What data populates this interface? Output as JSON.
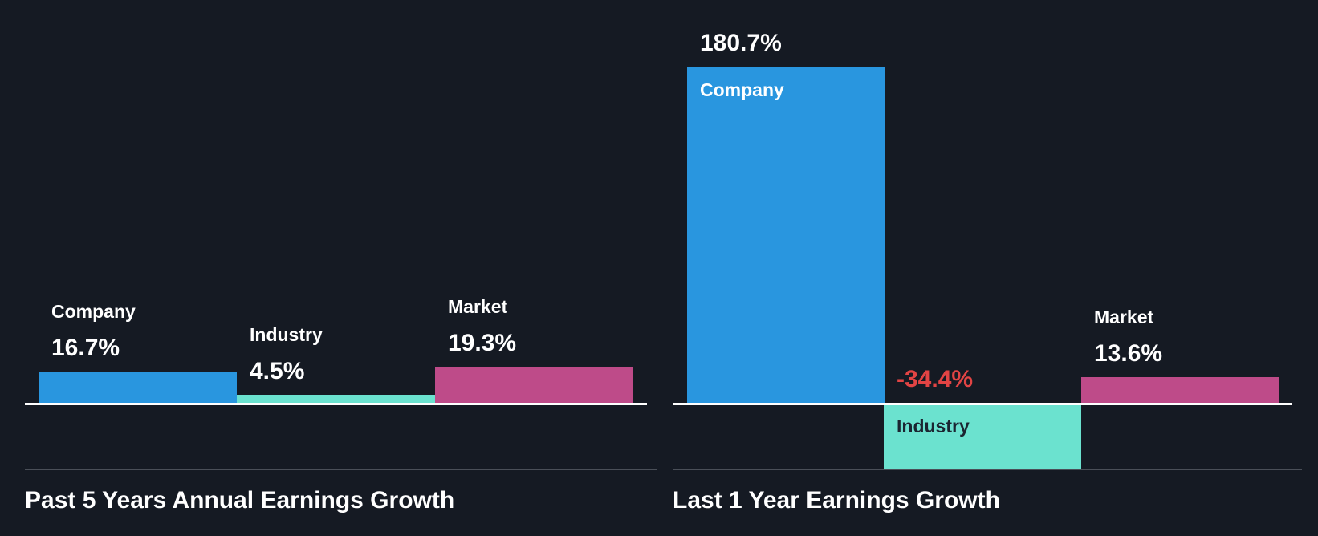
{
  "page": {
    "background_color": "#151A23",
    "baseline_color": "#FFFFFF",
    "separator_color": "#4A4F58",
    "title_color": "#FFFFFF",
    "negative_value_color": "#E24444"
  },
  "chart_data": [
    {
      "type": "bar",
      "title": "Past 5 Years Annual Earnings Growth",
      "unit": "%",
      "categories": [
        "Company",
        "Industry",
        "Market"
      ],
      "values": [
        16.7,
        4.5,
        19.3
      ],
      "ylim": [
        -40,
        195
      ],
      "grid": false,
      "legend": "none",
      "baseline": 0,
      "bars": [
        {
          "category": "Company",
          "value": 16.7,
          "value_label": "16.7%",
          "color": "#2996DF",
          "value_color": "#FFFFFF",
          "name_position": "above",
          "name_color": "#FFFFFF"
        },
        {
          "category": "Industry",
          "value": 4.5,
          "value_label": "4.5%",
          "color": "#6BE2CF",
          "value_color": "#FFFFFF",
          "name_position": "above",
          "name_color": "#FFFFFF"
        },
        {
          "category": "Market",
          "value": 19.3,
          "value_label": "19.3%",
          "color": "#BE4B89",
          "value_color": "#FFFFFF",
          "name_position": "above",
          "name_color": "#FFFFFF"
        }
      ]
    },
    {
      "type": "bar",
      "title": "Last 1 Year Earnings Growth",
      "unit": "%",
      "categories": [
        "Company",
        "Industry",
        "Market"
      ],
      "values": [
        180.7,
        -34.4,
        13.6
      ],
      "ylim": [
        -40,
        195
      ],
      "grid": false,
      "legend": "none",
      "baseline": 0,
      "bars": [
        {
          "category": "Company",
          "value": 180.7,
          "value_label": "180.7%",
          "color": "#2996DF",
          "value_color": "#FFFFFF",
          "name_position": "inside",
          "name_color": "#FFFFFF"
        },
        {
          "category": "Industry",
          "value": -34.4,
          "value_label": "-34.4%",
          "color": "#6BE2CF",
          "value_color": "#E24444",
          "name_position": "inside",
          "name_color": "#1B2531"
        },
        {
          "category": "Market",
          "value": 13.6,
          "value_label": "13.6%",
          "color": "#BE4B89",
          "value_color": "#FFFFFF",
          "name_position": "above",
          "name_color": "#FFFFFF"
        }
      ]
    }
  ]
}
